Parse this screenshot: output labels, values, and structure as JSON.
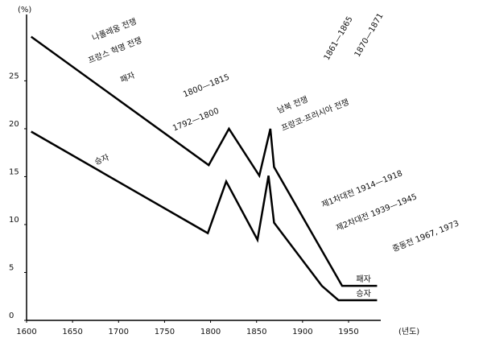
{
  "chart_data": {
    "type": "line",
    "ylabel": "(%)",
    "xlabel": "(년도)",
    "xlim": [
      1600,
      1985
    ],
    "xticks": [
      1600,
      1650,
      1700,
      1750,
      1800,
      1850,
      1900,
      1950
    ],
    "ylim": [
      0,
      31
    ],
    "yticks": [
      0,
      5,
      10,
      15,
      20,
      25
    ],
    "series": [
      {
        "name": "패자",
        "color": "#000000",
        "x": [
          1605,
          1798,
          1820,
          1853,
          1865,
          1869,
          1943,
          1981
        ],
        "values": [
          29.6,
          16.2,
          20,
          15.1,
          20,
          16,
          3.6,
          3.6
        ]
      },
      {
        "name": "승자",
        "color": "#000000",
        "x": [
          1605,
          1797,
          1817,
          1851,
          1863,
          1869,
          1921,
          1939,
          1981
        ],
        "values": [
          19.7,
          9.1,
          14.5,
          8.4,
          15.1,
          10.2,
          3.6,
          2.1,
          2.1
        ]
      }
    ],
    "annotations": [
      "나폴레옹 전쟁",
      "프랑스 혁명 전쟁",
      "패자",
      "1800—1815",
      "1792—1800",
      "승자",
      "남북 전쟁",
      "프랑코-프러시아 전쟁",
      "1861—1865",
      "1870—1871",
      "제1차대전  1914—1918",
      "제2차대전  1939—1945",
      "중동전    1967, 1973"
    ]
  }
}
